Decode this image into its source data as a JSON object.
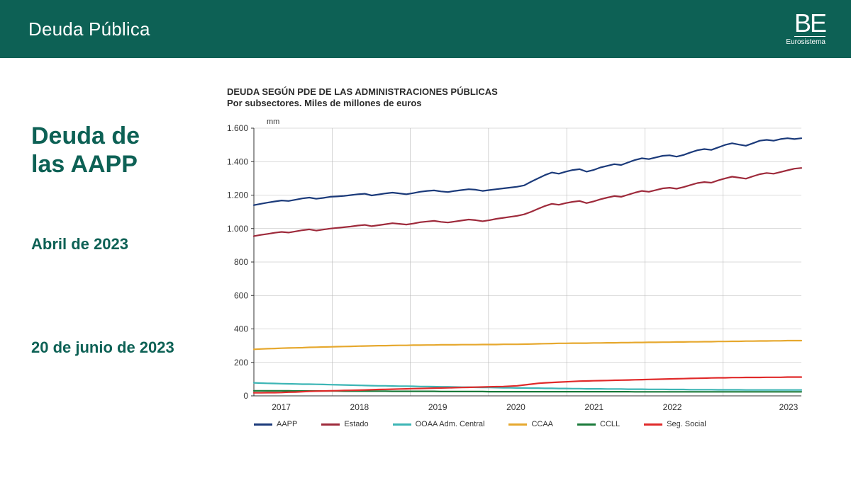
{
  "header": {
    "title": "Deuda Pública",
    "logo_top": "BE",
    "logo_sub": "Eurosistema",
    "bg_color": "#0d6155"
  },
  "left_panel": {
    "main_title_line1": "Deuda de",
    "main_title_line2": "las AAPP",
    "subtitle1": "Abril de 2023",
    "subtitle2": "20 de junio de 2023",
    "text_color": "#0d6155"
  },
  "chart": {
    "type": "line",
    "title_line1": "DEUDA SEGÚN PDE DE LAS ADMINISTRACIONES PÚBLICAS",
    "title_line2": "Por subsectores. Miles de millones de euros",
    "y_axis_label": "mm",
    "ylim": [
      0,
      1600
    ],
    "ytick_step": 200,
    "yticks": [
      "0",
      "200",
      "400",
      "600",
      "800",
      "1.000",
      "1.200",
      "1.400",
      "1.600"
    ],
    "x_labels": [
      "2017",
      "2018",
      "2019",
      "2020",
      "2021",
      "2022",
      "2023"
    ],
    "x_range_months": 80,
    "grid_color": "#b8b8b8",
    "axis_color": "#333333",
    "background_color": "#ffffff",
    "title_fontsize": 13,
    "tick_fontsize": 12,
    "line_width": 2.2,
    "series": [
      {
        "name": "AAPP",
        "color": "#1b3a7a",
        "values": [
          1140,
          1148,
          1155,
          1162,
          1168,
          1165,
          1172,
          1180,
          1185,
          1178,
          1183,
          1190,
          1192,
          1195,
          1200,
          1205,
          1208,
          1198,
          1204,
          1210,
          1215,
          1210,
          1205,
          1212,
          1220,
          1225,
          1228,
          1222,
          1218,
          1225,
          1230,
          1235,
          1232,
          1225,
          1230,
          1235,
          1240,
          1245,
          1250,
          1258,
          1280,
          1300,
          1320,
          1335,
          1328,
          1340,
          1350,
          1355,
          1340,
          1350,
          1365,
          1375,
          1385,
          1380,
          1395,
          1410,
          1420,
          1415,
          1425,
          1435,
          1438,
          1430,
          1440,
          1455,
          1468,
          1475,
          1470,
          1485,
          1500,
          1510,
          1502,
          1495,
          1510,
          1525,
          1530,
          1525,
          1535,
          1540,
          1535,
          1540
        ]
      },
      {
        "name": "Estado",
        "color": "#9e2a3b",
        "values": [
          955,
          962,
          968,
          975,
          980,
          976,
          983,
          990,
          995,
          988,
          994,
          1000,
          1004,
          1008,
          1012,
          1018,
          1022,
          1014,
          1020,
          1026,
          1032,
          1028,
          1024,
          1030,
          1038,
          1042,
          1046,
          1040,
          1036,
          1042,
          1048,
          1054,
          1050,
          1044,
          1050,
          1058,
          1064,
          1070,
          1076,
          1085,
          1100,
          1118,
          1135,
          1148,
          1142,
          1152,
          1160,
          1165,
          1152,
          1162,
          1175,
          1185,
          1194,
          1190,
          1202,
          1215,
          1225,
          1220,
          1230,
          1240,
          1244,
          1238,
          1248,
          1260,
          1272,
          1278,
          1274,
          1288,
          1300,
          1310,
          1304,
          1298,
          1312,
          1325,
          1332,
          1328,
          1338,
          1348,
          1358,
          1362
        ]
      },
      {
        "name": "OOAA Adm. Central",
        "color": "#3cb5b5",
        "values": [
          78,
          76,
          75,
          74,
          73,
          72,
          71,
          70,
          70,
          69,
          68,
          67,
          66,
          65,
          64,
          63,
          62,
          61,
          60,
          60,
          59,
          58,
          58,
          57,
          56,
          56,
          55,
          54,
          54,
          53,
          52,
          52,
          51,
          50,
          50,
          49,
          48,
          48,
          47,
          47,
          46,
          46,
          45,
          45,
          44,
          44,
          43,
          43,
          42,
          42,
          42,
          41,
          41,
          41,
          40,
          40,
          40,
          39,
          39,
          39,
          38,
          38,
          38,
          37,
          37,
          37,
          37,
          36,
          36,
          36,
          36,
          35,
          35,
          35,
          35,
          35,
          35,
          35,
          35,
          35
        ]
      },
      {
        "name": "CCAA",
        "color": "#e6a82e",
        "values": [
          278,
          280,
          282,
          283,
          285,
          286,
          287,
          288,
          290,
          291,
          292,
          293,
          294,
          295,
          296,
          297,
          298,
          299,
          300,
          300,
          301,
          302,
          302,
          303,
          303,
          304,
          304,
          305,
          305,
          305,
          306,
          306,
          306,
          307,
          307,
          307,
          308,
          308,
          308,
          309,
          310,
          311,
          312,
          313,
          314,
          314,
          315,
          315,
          315,
          316,
          316,
          317,
          317,
          318,
          318,
          319,
          319,
          320,
          320,
          321,
          321,
          322,
          322,
          323,
          323,
          324,
          324,
          325,
          325,
          326,
          326,
          327,
          327,
          328,
          328,
          329,
          329,
          330,
          330,
          330
        ]
      },
      {
        "name": "CCLL",
        "color": "#1a7a3a",
        "values": [
          30,
          30,
          30,
          30,
          30,
          30,
          29,
          29,
          29,
          29,
          29,
          29,
          29,
          28,
          28,
          28,
          28,
          28,
          28,
          28,
          27,
          27,
          27,
          27,
          27,
          27,
          27,
          26,
          26,
          26,
          26,
          26,
          26,
          26,
          25,
          25,
          25,
          25,
          25,
          25,
          25,
          25,
          25,
          25,
          25,
          25,
          25,
          25,
          25,
          25,
          25,
          25,
          25,
          25,
          25,
          24,
          24,
          24,
          24,
          24,
          24,
          24,
          24,
          24,
          24,
          24,
          24,
          24,
          24,
          24,
          24,
          24,
          24,
          24,
          24,
          24,
          24,
          24,
          24,
          24
        ]
      },
      {
        "name": "Seg. Social",
        "color": "#e02a2a",
        "values": [
          18,
          18,
          19,
          19,
          20,
          22,
          23,
          25,
          27,
          28,
          29,
          30,
          31,
          32,
          33,
          34,
          35,
          37,
          38,
          39,
          40,
          41,
          42,
          43,
          44,
          45,
          46,
          47,
          48,
          49,
          50,
          51,
          52,
          53,
          54,
          55,
          56,
          58,
          60,
          65,
          70,
          75,
          78,
          80,
          82,
          84,
          86,
          88,
          89,
          90,
          91,
          92,
          93,
          94,
          95,
          96,
          97,
          98,
          99,
          100,
          101,
          102,
          103,
          104,
          105,
          106,
          107,
          108,
          108,
          109,
          109,
          110,
          110,
          110,
          111,
          111,
          111,
          112,
          112,
          112
        ]
      }
    ],
    "legend_labels": [
      "AAPP",
      "Estado",
      "OOAA Adm. Central",
      "CCAA",
      "CCLL",
      "Seg. Social"
    ]
  }
}
